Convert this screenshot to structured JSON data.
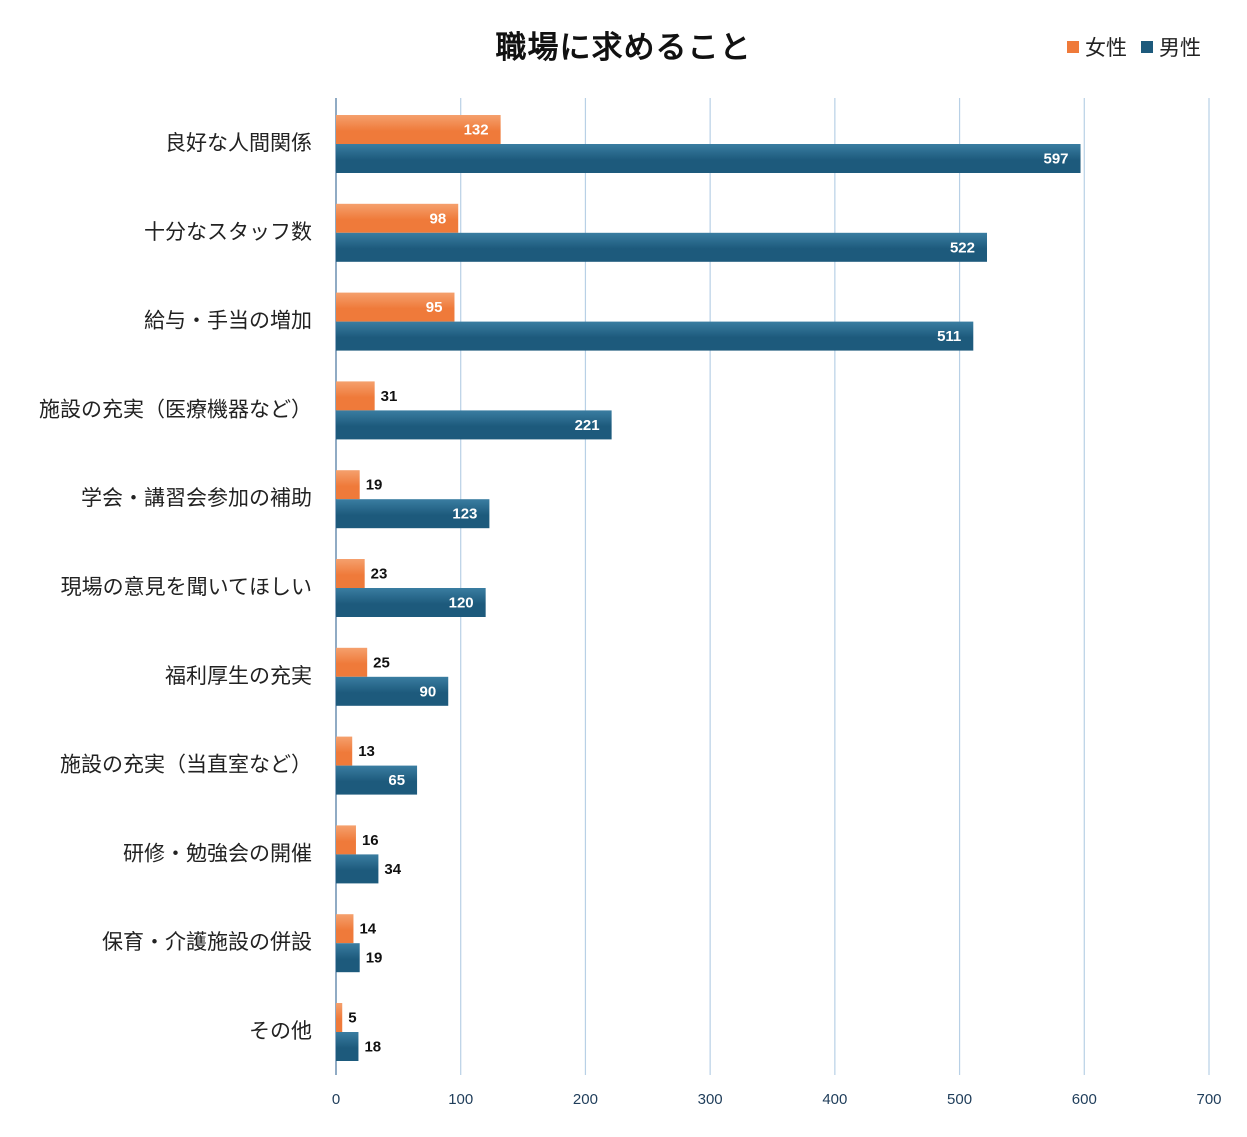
{
  "colors": {
    "female": "#ef7a3a",
    "female_light": "#f5a06d",
    "male": "#1d5a7c",
    "male_light": "#3a7da1",
    "grid": "#b8d0e6",
    "axis": "#6b8fb0"
  },
  "chart_data": {
    "type": "bar",
    "orientation": "horizontal",
    "title": "職場に求めること",
    "categories": [
      "良好な人間関係",
      "十分なスタッフ数",
      "給与・手当の増加",
      "施設の充実（医療機器など）",
      "学会・講習会参加の補助",
      "現場の意見を聞いてほしい",
      "福利厚生の充実",
      "施設の充実（当直室など）",
      "研修・勉強会の開催",
      "保育・介護施設の併設",
      "その他"
    ],
    "series": [
      {
        "name": "女性",
        "key": "female",
        "values": [
          132,
          98,
          95,
          31,
          19,
          23,
          25,
          13,
          16,
          14,
          5
        ]
      },
      {
        "name": "男性",
        "key": "male",
        "values": [
          597,
          522,
          511,
          221,
          123,
          120,
          90,
          65,
          34,
          19,
          18
        ]
      }
    ],
    "xlim": [
      0,
      700
    ],
    "xticks": [
      0,
      100,
      200,
      300,
      400,
      500,
      600,
      700
    ],
    "grid": true,
    "legend_position": "top-right",
    "xlabel": "",
    "ylabel": ""
  }
}
